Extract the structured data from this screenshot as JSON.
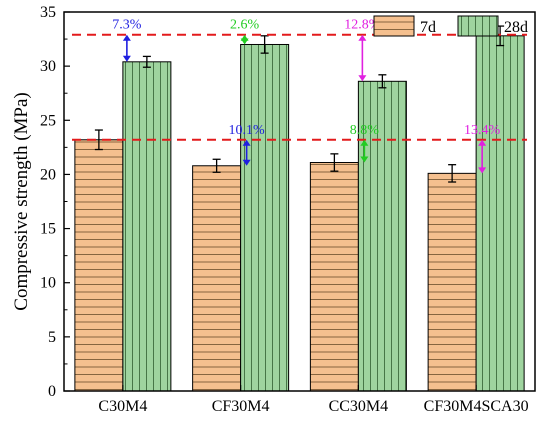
{
  "chart_data": {
    "type": "bar",
    "ylabel": "Compressive strength (MPa)",
    "xlabel": "",
    "ylim": [
      0,
      35
    ],
    "yticks": [
      0,
      5,
      10,
      15,
      20,
      25,
      30,
      35
    ],
    "grid": false,
    "legend_position": "top-right",
    "categories": [
      "C30M4",
      "CF30M4",
      "CC30M4",
      "CF30M4SCA30"
    ],
    "series": [
      {
        "name": "7d",
        "values": [
          23.2,
          20.8,
          21.1,
          20.1
        ],
        "errors": [
          0.9,
          0.6,
          0.8,
          0.8
        ],
        "color": "#f5c08f",
        "pattern": "horizontal-lines"
      },
      {
        "name": "28d",
        "values": [
          30.4,
          32.0,
          28.6,
          32.8
        ],
        "errors": [
          0.5,
          0.8,
          0.6,
          0.9
        ],
        "color": "#9fd49f",
        "pattern": "vertical-lines"
      }
    ],
    "reference_lines": [
      {
        "y": 23.2,
        "color": "#e31a1c",
        "style": "dashed"
      },
      {
        "y": 32.9,
        "color": "#e31a1c",
        "style": "dashed"
      }
    ],
    "annotations": [
      {
        "category": "C30M4",
        "series": "28d",
        "text": "7.3%",
        "color": "#1f1fe0",
        "from": 30.4,
        "to": 32.9
      },
      {
        "category": "CF30M4",
        "series": "7d",
        "text": "10.1%",
        "color": "#1f1fe0",
        "from": 20.8,
        "to": 23.2
      },
      {
        "category": "CF30M4",
        "series": "28d",
        "text": "2.6%",
        "color": "#22cc22",
        "from": 32.0,
        "to": 32.9
      },
      {
        "category": "CC30M4",
        "series": "7d",
        "text": "8.8%",
        "color": "#22cc22",
        "from": 21.1,
        "to": 23.2
      },
      {
        "category": "CC30M4",
        "series": "28d",
        "text": "12.8%",
        "color": "#e020e0",
        "from": 28.6,
        "to": 32.9
      },
      {
        "category": "CF30M4SCA30",
        "series": "7d",
        "text": "13.4%",
        "color": "#e020e0",
        "from": 20.1,
        "to": 23.2
      }
    ]
  }
}
